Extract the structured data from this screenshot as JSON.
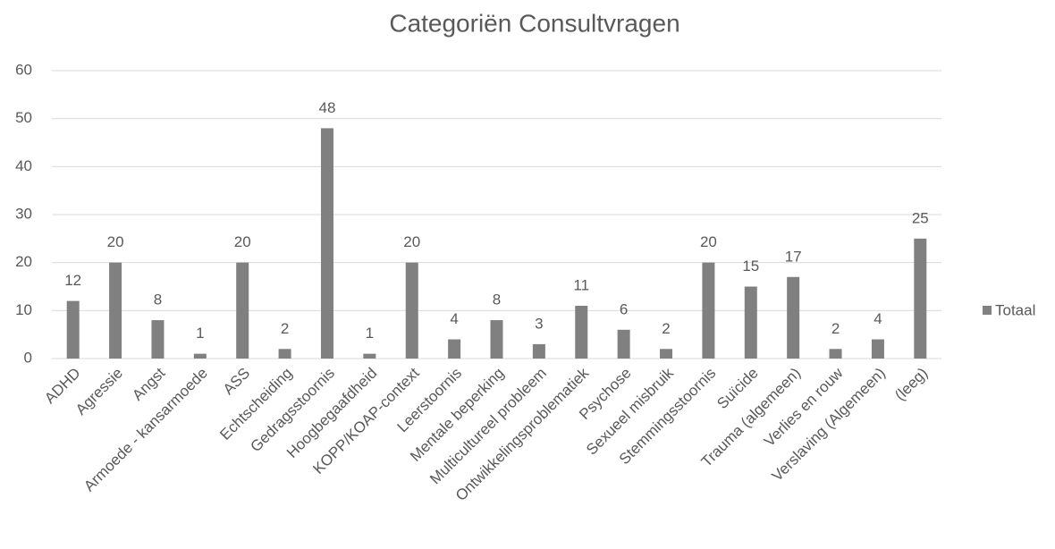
{
  "chart_data": {
    "type": "bar",
    "title": "Categoriën Consultvragen",
    "categories": [
      "ADHD",
      "Agressie",
      "Angst",
      "Armoede - kansarmoede",
      "ASS",
      "Echtscheiding",
      "Gedragsstoornis",
      "Hoogbegaafdheid",
      "KOPP/KOAP-context",
      "Leerstoornis",
      "Mentale beperking",
      "Multicultureel probleem",
      "Ontwikkelingsproblematiek",
      "Psychose",
      "Sexueel misbruik",
      "Stemmingsstoornis",
      "Suïcide",
      "Trauma (algemeen)",
      "Verlies en rouw",
      "Verslaving (Algemeen)",
      "(leeg)"
    ],
    "series": [
      {
        "name": "Totaal",
        "color": "#808080",
        "values": [
          12,
          20,
          8,
          1,
          20,
          2,
          48,
          1,
          20,
          4,
          8,
          3,
          11,
          6,
          2,
          20,
          15,
          17,
          2,
          4,
          25
        ]
      }
    ],
    "ylim": [
      0,
      60
    ],
    "yticks": [
      0,
      10,
      20,
      30,
      40,
      50,
      60
    ],
    "grid": true,
    "legend": "right"
  }
}
